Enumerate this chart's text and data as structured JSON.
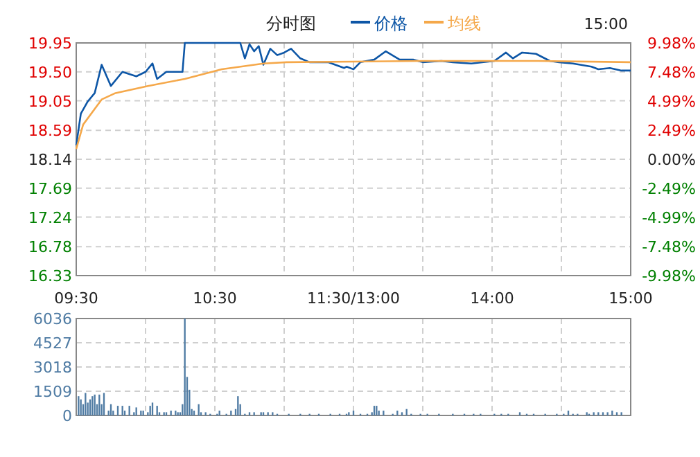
{
  "chart_data": [
    {
      "type": "line",
      "title": "分时图",
      "annotations": [
        "15:00"
      ],
      "legend": "top",
      "grid": true,
      "marker": "none",
      "line_style": "solid",
      "categories": [
        "09:30",
        null,
        null,
        null,
        null,
        null,
        null,
        null,
        null,
        null,
        null,
        null,
        null,
        null,
        null,
        null,
        null,
        null,
        null,
        null,
        null,
        null,
        null,
        null,
        null,
        null,
        null,
        null,
        null,
        null,
        null,
        null,
        null,
        null,
        null,
        null,
        null,
        null,
        null,
        null,
        null,
        null,
        null,
        null,
        null,
        null,
        null,
        null,
        null,
        null,
        null,
        null,
        null,
        null,
        null,
        null,
        null,
        null,
        null,
        null,
        "10:30",
        null,
        null,
        null,
        null,
        null,
        null,
        null,
        null,
        null,
        null,
        null,
        null,
        null,
        null,
        null,
        null,
        null,
        null,
        null,
        null,
        null,
        null,
        null,
        null,
        null,
        null,
        null,
        null,
        null,
        null,
        null,
        null,
        null,
        null,
        null,
        null,
        null,
        null,
        null,
        null,
        null,
        null,
        null,
        null,
        null,
        null,
        null,
        null,
        null,
        null,
        null,
        null,
        null,
        null,
        null,
        null,
        null,
        null,
        null,
        "11:30/13:00",
        null,
        null,
        null,
        null,
        null,
        null,
        null,
        null,
        null,
        null,
        null,
        null,
        null,
        null,
        null,
        null,
        null,
        null,
        null,
        null,
        null,
        null,
        null,
        null,
        null,
        null,
        null,
        null,
        null,
        null,
        null,
        null,
        null,
        null,
        null,
        null,
        null,
        null,
        null,
        null,
        null,
        null,
        null,
        null,
        null,
        null,
        null,
        null,
        null,
        null,
        null,
        null,
        null,
        null,
        null,
        null,
        null,
        null,
        null,
        "14:00",
        null,
        null,
        null,
        null,
        null,
        null,
        null,
        null,
        null,
        null,
        null,
        null,
        null,
        null,
        null,
        null,
        null,
        null,
        null,
        null,
        null,
        null,
        null,
        null,
        null,
        null,
        null,
        null,
        null,
        null,
        null,
        null,
        null,
        null,
        null,
        null,
        null,
        null,
        null,
        null,
        null,
        null,
        null,
        null,
        null,
        null,
        null,
        null,
        null,
        null,
        null,
        null,
        null,
        null,
        null,
        null,
        null,
        null,
        null,
        "15:00"
      ],
      "ylim": [
        16.33,
        19.95
      ],
      "yticks": [
        16.33,
        16.78,
        17.24,
        17.69,
        18.14,
        18.59,
        19.05,
        {
          "value": 19.5,
          "label": "19.50"
        },
        19.95
      ],
      "y2lim": [
        -9.98,
        9.98
      ],
      "y2ticks": [
        {
          "value": -9.98,
          "label": "-9.98%"
        },
        {
          "value": -7.48,
          "label": "-7.48%"
        },
        {
          "value": -4.99,
          "label": "-4.99%"
        },
        {
          "value": -2.49,
          "label": "-2.49%"
        },
        {
          "value": 0,
          "label": "0.00%"
        },
        {
          "value": 2.49,
          "label": "2.49%"
        },
        {
          "value": 4.99,
          "label": "4.99%"
        },
        {
          "value": 7.48,
          "label": "7.48%"
        },
        {
          "value": 9.98,
          "label": "9.98%"
        }
      ],
      "series": [
        {
          "name": "价格",
          "color": "#0d56a6",
          "values": [
            18.36,
            null,
            18.85,
            null,
            null,
            19.04,
            null,
            null,
            19.17,
            null,
            null,
            19.61,
            null,
            null,
            null,
            19.28,
            null,
            null,
            null,
            null,
            19.5,
            null,
            null,
            null,
            null,
            null,
            19.43,
            null,
            null,
            null,
            19.5,
            null,
            null,
            19.63,
            null,
            19.39,
            null,
            null,
            null,
            19.5,
            null,
            null,
            null,
            null,
            null,
            null,
            19.5,
            19.95,
            null,
            null,
            null,
            null,
            null,
            null,
            null,
            null,
            null,
            null,
            null,
            null,
            null,
            null,
            null,
            null,
            null,
            null,
            null,
            null,
            null,
            null,
            null,
            19.95,
            null,
            19.71,
            null,
            19.93,
            null,
            19.82,
            null,
            19.9,
            null,
            19.61,
            null,
            null,
            19.86,
            null,
            null,
            19.76,
            null,
            null,
            19.8,
            null,
            null,
            19.86,
            null,
            null,
            null,
            19.71,
            null,
            null,
            null,
            19.65,
            null,
            null,
            null,
            null,
            null,
            null,
            null,
            19.65,
            null,
            null,
            null,
            null,
            null,
            null,
            19.56,
            19.58,
            null,
            null,
            19.54,
            null,
            null,
            19.65,
            null,
            null,
            null,
            null,
            null,
            19.69,
            null,
            null,
            null,
            null,
            19.82,
            null,
            null,
            null,
            null,
            null,
            19.69,
            null,
            null,
            null,
            null,
            null,
            19.69,
            null,
            null,
            null,
            19.65,
            null,
            null,
            null,
            null,
            null,
            null,
            null,
            19.67,
            null,
            null,
            null,
            null,
            19.65,
            null,
            null,
            null,
            null,
            null,
            null,
            null,
            19.63,
            null,
            null,
            null,
            null,
            null,
            null,
            null,
            null,
            null,
            19.67,
            null,
            null,
            null,
            null,
            19.8,
            null,
            null,
            19.71,
            null,
            null,
            null,
            19.8,
            null,
            null,
            null,
            null,
            null,
            19.78,
            null,
            null,
            null,
            null,
            null,
            19.67,
            null,
            null,
            null,
            19.65,
            null,
            null,
            null,
            null,
            null,
            19.63,
            null,
            null,
            null,
            null,
            null,
            null,
            null,
            19.58,
            null,
            null,
            19.54,
            null,
            null,
            null,
            null,
            19.56,
            null,
            null,
            null,
            null,
            19.52,
            null,
            null,
            null,
            19.52
          ]
        },
        {
          "name": "均线",
          "color": "#f5a84a",
          "values": [
            18.3,
            null,
            null,
            18.68,
            null,
            null,
            null,
            null,
            null,
            null,
            null,
            19.07,
            null,
            null,
            null,
            null,
            null,
            19.17,
            null,
            null,
            null,
            null,
            null,
            null,
            null,
            null,
            null,
            null,
            null,
            null,
            null,
            19.28,
            null,
            null,
            null,
            null,
            null,
            null,
            null,
            null,
            null,
            null,
            null,
            null,
            null,
            null,
            null,
            19.39,
            null,
            null,
            null,
            null,
            null,
            null,
            null,
            null,
            null,
            null,
            null,
            null,
            null,
            null,
            null,
            19.54,
            null,
            null,
            null,
            null,
            null,
            null,
            null,
            null,
            null,
            null,
            null,
            null,
            null,
            null,
            null,
            null,
            null,
            19.63,
            null,
            null,
            null,
            null,
            null,
            null,
            null,
            null,
            null,
            19.65,
            null,
            null,
            null,
            null,
            null,
            null,
            null,
            null,
            null,
            null,
            null,
            null,
            null,
            null,
            null,
            null,
            null,
            null,
            null,
            null,
            null,
            null,
            null,
            null,
            null,
            null,
            null,
            null,
            null,
            null,
            null,
            null,
            null,
            null,
            null,
            null,
            null,
            null,
            null,
            null,
            null,
            null,
            null,
            null,
            null,
            null,
            null,
            null,
            null,
            null,
            null,
            null,
            null,
            null,
            null,
            null,
            null,
            null,
            19.67,
            null,
            null,
            null,
            null,
            null,
            null,
            null,
            null,
            null,
            null,
            null,
            null,
            null,
            null,
            null,
            null,
            null,
            null,
            null,
            null,
            null,
            null,
            null,
            null,
            null,
            null,
            null,
            null,
            null,
            null,
            null,
            null,
            null,
            null,
            null,
            null,
            null,
            null,
            null,
            null,
            null,
            null,
            null,
            null,
            null,
            null,
            null,
            null,
            null,
            19.67,
            null,
            null,
            null,
            null,
            null,
            null,
            null,
            null,
            null,
            null,
            null,
            null,
            null,
            null,
            null,
            null,
            null,
            null,
            null,
            null,
            null,
            null,
            null,
            null,
            null,
            null,
            null,
            null,
            null,
            null,
            null,
            null,
            null,
            null,
            null,
            null,
            null,
            null,
            null,
            19.65
          ]
        }
      ]
    },
    {
      "type": "bar",
      "color": "#4f7ba3",
      "grid": true,
      "tick_labels": "y",
      "categories": [
        null,
        null,
        null,
        null,
        null,
        null,
        null,
        null,
        null,
        null,
        null,
        null,
        null,
        null,
        null,
        null,
        null,
        null,
        null,
        null,
        null,
        null,
        null,
        null,
        null,
        null,
        null,
        null,
        null,
        null,
        null,
        null,
        null,
        null,
        null,
        null,
        null,
        null,
        null,
        null,
        null,
        null,
        null,
        null,
        null,
        null,
        null,
        null,
        null,
        null,
        null,
        null,
        null,
        null,
        null,
        null,
        null,
        null,
        null,
        null,
        null,
        null,
        null,
        null,
        null,
        null,
        null,
        null,
        null,
        null,
        null,
        null,
        null,
        null,
        null,
        null,
        null,
        null,
        null,
        null,
        null,
        null,
        null,
        null,
        null,
        null,
        null,
        null,
        null,
        null,
        null,
        null,
        null,
        null,
        null,
        null,
        null,
        null,
        null,
        null,
        null,
        null,
        null,
        null,
        null,
        null,
        null,
        null,
        null,
        null,
        null,
        null,
        null,
        null,
        null,
        null,
        null,
        null,
        null,
        null,
        null,
        null,
        null,
        null,
        null,
        null,
        null,
        null,
        null,
        null,
        null,
        null,
        null,
        null,
        null,
        null,
        null,
        null,
        null,
        null,
        null,
        null,
        null,
        null,
        null,
        null,
        null,
        null,
        null,
        null,
        null,
        null,
        null,
        null,
        null,
        null,
        null,
        null,
        null,
        null,
        null,
        null,
        null,
        null,
        null,
        null,
        null,
        null,
        null,
        null,
        null,
        null,
        null,
        null,
        null,
        null,
        null,
        null,
        null,
        null,
        null,
        null,
        null,
        null,
        null,
        null,
        null,
        null,
        null,
        null,
        null,
        null,
        null,
        null,
        null,
        null,
        null,
        null,
        null,
        null,
        null,
        null,
        null,
        null,
        null,
        null,
        null,
        null,
        null,
        null,
        null,
        null,
        null,
        null,
        null,
        null,
        null,
        null,
        null,
        null,
        null,
        null,
        null,
        null,
        null,
        null,
        null,
        null,
        null,
        null,
        null,
        null,
        null,
        null,
        null,
        null,
        null,
        null,
        null,
        null,
        null
      ],
      "ylim": [
        0,
        6036
      ],
      "yticks": [
        0,
        1509,
        3018,
        4527,
        6036
      ],
      "values": [
        null,
        1200,
        1000,
        700,
        1400,
        800,
        1000,
        1200,
        1300,
        700,
        1300,
        700,
        1400,
        null,
        300,
        700,
        300,
        null,
        600,
        null,
        600,
        300,
        null,
        600,
        null,
        200,
        500,
        null,
        300,
        300,
        null,
        200,
        600,
        800,
        null,
        600,
        200,
        null,
        200,
        200,
        null,
        300,
        null,
        300,
        200,
        200,
        700,
        6036,
        2400,
        1600,
        400,
        300,
        null,
        700,
        200,
        null,
        200,
        null,
        100,
        null,
        null,
        100,
        300,
        null,
        null,
        100,
        null,
        300,
        null,
        400,
        1200,
        700,
        null,
        100,
        null,
        200,
        null,
        200,
        null,
        null,
        200,
        200,
        null,
        200,
        null,
        200,
        null,
        100,
        null,
        null,
        null,
        null,
        100,
        null,
        null,
        null,
        null,
        100,
        null,
        null,
        null,
        100,
        null,
        null,
        null,
        100,
        null,
        null,
        null,
        null,
        100,
        null,
        null,
        null,
        100,
        null,
        null,
        100,
        200,
        null,
        300,
        null,
        null,
        100,
        null,
        null,
        100,
        null,
        200,
        600,
        600,
        300,
        null,
        300,
        null,
        null,
        null,
        100,
        null,
        300,
        null,
        200,
        null,
        400,
        null,
        100,
        null,
        null,
        null,
        100,
        null,
        null,
        100,
        null,
        null,
        null,
        null,
        100,
        null,
        null,
        null,
        null,
        null,
        100,
        null,
        null,
        null,
        null,
        100,
        null,
        null,
        null,
        100,
        null,
        null,
        100,
        null,
        null,
        null,
        null,
        null,
        100,
        null,
        null,
        100,
        null,
        null,
        100,
        null,
        null,
        null,
        null,
        200,
        null,
        null,
        100,
        null,
        null,
        100,
        null,
        null,
        null,
        null,
        100,
        null,
        null,
        null,
        null,
        100,
        null,
        null,
        100,
        null,
        300,
        null,
        100,
        null,
        100,
        null,
        null,
        null,
        200,
        100,
        null,
        200,
        null,
        200,
        null,
        200,
        null,
        200,
        null,
        300,
        null,
        200,
        null,
        200,
        null,
        null,
        null,
        null
      ]
    }
  ]
}
